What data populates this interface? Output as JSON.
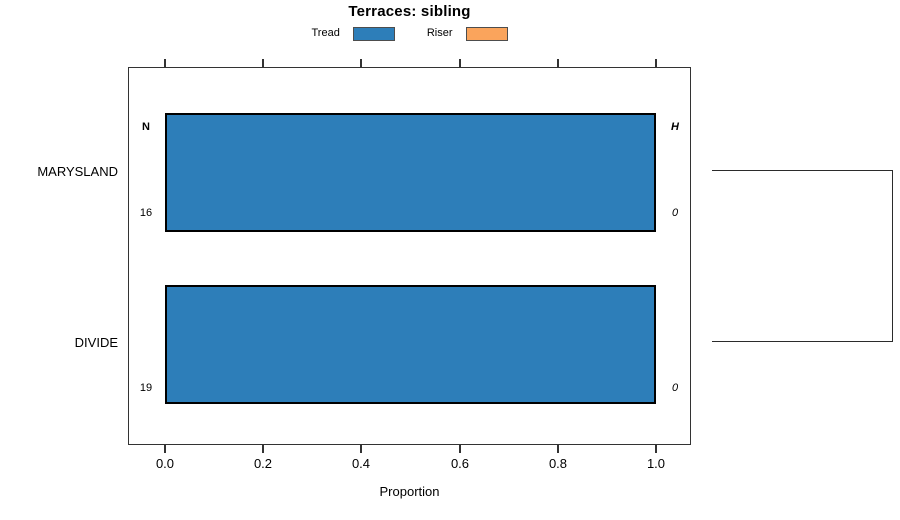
{
  "title": "Terraces: sibling",
  "legend": {
    "items": [
      {
        "label": "Tread",
        "color": "#2D7EB9"
      },
      {
        "label": "Riser",
        "color": "#FAA45C"
      }
    ]
  },
  "x_axis": {
    "label": "Proportion",
    "ticks": [
      "0.0",
      "0.2",
      "0.4",
      "0.6",
      "0.8",
      "1.0"
    ]
  },
  "y_axis": {
    "categories": [
      "MARYSLAND",
      "DIVIDE"
    ]
  },
  "annotations": {
    "left_header": "N",
    "right_header": "H",
    "left_values": [
      "16",
      "19"
    ],
    "right_values": [
      "0",
      "0"
    ]
  },
  "chart_data": {
    "type": "bar",
    "orientation": "horizontal",
    "title": "Terraces: sibling",
    "xlabel": "Proportion",
    "xlim": [
      0,
      1
    ],
    "xticks": [
      0.0,
      0.2,
      0.4,
      0.6,
      0.8,
      1.0
    ],
    "categories": [
      "MARYSLAND",
      "DIVIDE"
    ],
    "series": [
      {
        "name": "Tread",
        "color": "#2D7EB9",
        "values": [
          1.0,
          1.0
        ]
      },
      {
        "name": "Riser",
        "color": "#FAA45C",
        "values": [
          0.0,
          0.0
        ]
      }
    ],
    "row_annotations": {
      "N": [
        16,
        19
      ],
      "H": [
        0,
        0
      ],
      "N_header_shown_on_row": "MARYSLAND",
      "H_header_shown_on_row": "MARYSLAND"
    },
    "legend_position": "top-center",
    "grid": false,
    "ticks_on_top_axis": true,
    "right_bracket_connects": [
      "MARYSLAND",
      "DIVIDE"
    ]
  }
}
